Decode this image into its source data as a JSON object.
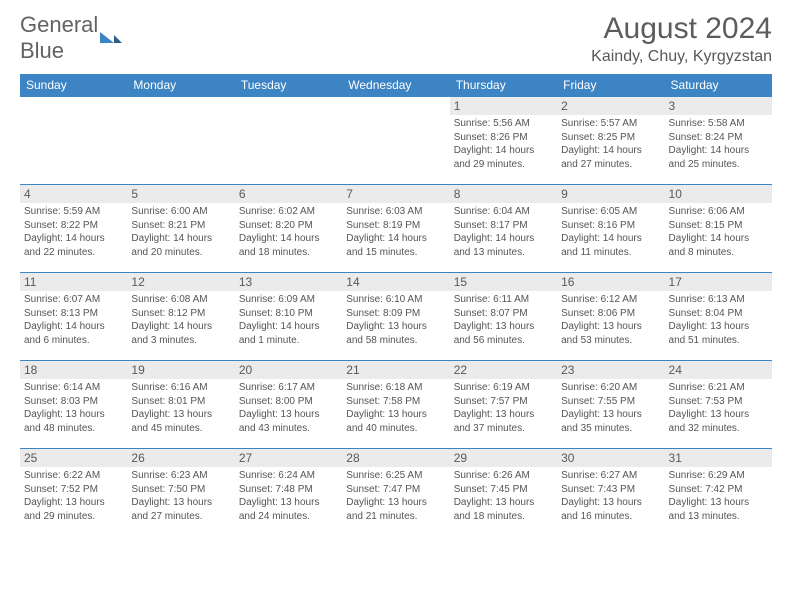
{
  "logo": {
    "general": "General",
    "blue": "Blue"
  },
  "title": "August 2024",
  "location": "Kaindy, Chuy, Kyrgyzstan",
  "colors": {
    "header_bg": "#3d84c4",
    "header_text": "#ffffff",
    "daynum_bg": "#ebebeb",
    "daynum_text": "#595959",
    "body_text": "#555555",
    "border": "#3d84c4",
    "title_text": "#5c5c5c",
    "logo_gray": "#636262",
    "logo_blue": "#3d84c4"
  },
  "weekdays": [
    "Sunday",
    "Monday",
    "Tuesday",
    "Wednesday",
    "Thursday",
    "Friday",
    "Saturday"
  ],
  "weeks": [
    [
      null,
      null,
      null,
      null,
      {
        "n": "1",
        "sr": "Sunrise: 5:56 AM",
        "ss": "Sunset: 8:26 PM",
        "dl1": "Daylight: 14 hours",
        "dl2": "and 29 minutes."
      },
      {
        "n": "2",
        "sr": "Sunrise: 5:57 AM",
        "ss": "Sunset: 8:25 PM",
        "dl1": "Daylight: 14 hours",
        "dl2": "and 27 minutes."
      },
      {
        "n": "3",
        "sr": "Sunrise: 5:58 AM",
        "ss": "Sunset: 8:24 PM",
        "dl1": "Daylight: 14 hours",
        "dl2": "and 25 minutes."
      }
    ],
    [
      {
        "n": "4",
        "sr": "Sunrise: 5:59 AM",
        "ss": "Sunset: 8:22 PM",
        "dl1": "Daylight: 14 hours",
        "dl2": "and 22 minutes."
      },
      {
        "n": "5",
        "sr": "Sunrise: 6:00 AM",
        "ss": "Sunset: 8:21 PM",
        "dl1": "Daylight: 14 hours",
        "dl2": "and 20 minutes."
      },
      {
        "n": "6",
        "sr": "Sunrise: 6:02 AM",
        "ss": "Sunset: 8:20 PM",
        "dl1": "Daylight: 14 hours",
        "dl2": "and 18 minutes."
      },
      {
        "n": "7",
        "sr": "Sunrise: 6:03 AM",
        "ss": "Sunset: 8:19 PM",
        "dl1": "Daylight: 14 hours",
        "dl2": "and 15 minutes."
      },
      {
        "n": "8",
        "sr": "Sunrise: 6:04 AM",
        "ss": "Sunset: 8:17 PM",
        "dl1": "Daylight: 14 hours",
        "dl2": "and 13 minutes."
      },
      {
        "n": "9",
        "sr": "Sunrise: 6:05 AM",
        "ss": "Sunset: 8:16 PM",
        "dl1": "Daylight: 14 hours",
        "dl2": "and 11 minutes."
      },
      {
        "n": "10",
        "sr": "Sunrise: 6:06 AM",
        "ss": "Sunset: 8:15 PM",
        "dl1": "Daylight: 14 hours",
        "dl2": "and 8 minutes."
      }
    ],
    [
      {
        "n": "11",
        "sr": "Sunrise: 6:07 AM",
        "ss": "Sunset: 8:13 PM",
        "dl1": "Daylight: 14 hours",
        "dl2": "and 6 minutes."
      },
      {
        "n": "12",
        "sr": "Sunrise: 6:08 AM",
        "ss": "Sunset: 8:12 PM",
        "dl1": "Daylight: 14 hours",
        "dl2": "and 3 minutes."
      },
      {
        "n": "13",
        "sr": "Sunrise: 6:09 AM",
        "ss": "Sunset: 8:10 PM",
        "dl1": "Daylight: 14 hours",
        "dl2": "and 1 minute."
      },
      {
        "n": "14",
        "sr": "Sunrise: 6:10 AM",
        "ss": "Sunset: 8:09 PM",
        "dl1": "Daylight: 13 hours",
        "dl2": "and 58 minutes."
      },
      {
        "n": "15",
        "sr": "Sunrise: 6:11 AM",
        "ss": "Sunset: 8:07 PM",
        "dl1": "Daylight: 13 hours",
        "dl2": "and 56 minutes."
      },
      {
        "n": "16",
        "sr": "Sunrise: 6:12 AM",
        "ss": "Sunset: 8:06 PM",
        "dl1": "Daylight: 13 hours",
        "dl2": "and 53 minutes."
      },
      {
        "n": "17",
        "sr": "Sunrise: 6:13 AM",
        "ss": "Sunset: 8:04 PM",
        "dl1": "Daylight: 13 hours",
        "dl2": "and 51 minutes."
      }
    ],
    [
      {
        "n": "18",
        "sr": "Sunrise: 6:14 AM",
        "ss": "Sunset: 8:03 PM",
        "dl1": "Daylight: 13 hours",
        "dl2": "and 48 minutes."
      },
      {
        "n": "19",
        "sr": "Sunrise: 6:16 AM",
        "ss": "Sunset: 8:01 PM",
        "dl1": "Daylight: 13 hours",
        "dl2": "and 45 minutes."
      },
      {
        "n": "20",
        "sr": "Sunrise: 6:17 AM",
        "ss": "Sunset: 8:00 PM",
        "dl1": "Daylight: 13 hours",
        "dl2": "and 43 minutes."
      },
      {
        "n": "21",
        "sr": "Sunrise: 6:18 AM",
        "ss": "Sunset: 7:58 PM",
        "dl1": "Daylight: 13 hours",
        "dl2": "and 40 minutes."
      },
      {
        "n": "22",
        "sr": "Sunrise: 6:19 AM",
        "ss": "Sunset: 7:57 PM",
        "dl1": "Daylight: 13 hours",
        "dl2": "and 37 minutes."
      },
      {
        "n": "23",
        "sr": "Sunrise: 6:20 AM",
        "ss": "Sunset: 7:55 PM",
        "dl1": "Daylight: 13 hours",
        "dl2": "and 35 minutes."
      },
      {
        "n": "24",
        "sr": "Sunrise: 6:21 AM",
        "ss": "Sunset: 7:53 PM",
        "dl1": "Daylight: 13 hours",
        "dl2": "and 32 minutes."
      }
    ],
    [
      {
        "n": "25",
        "sr": "Sunrise: 6:22 AM",
        "ss": "Sunset: 7:52 PM",
        "dl1": "Daylight: 13 hours",
        "dl2": "and 29 minutes."
      },
      {
        "n": "26",
        "sr": "Sunrise: 6:23 AM",
        "ss": "Sunset: 7:50 PM",
        "dl1": "Daylight: 13 hours",
        "dl2": "and 27 minutes."
      },
      {
        "n": "27",
        "sr": "Sunrise: 6:24 AM",
        "ss": "Sunset: 7:48 PM",
        "dl1": "Daylight: 13 hours",
        "dl2": "and 24 minutes."
      },
      {
        "n": "28",
        "sr": "Sunrise: 6:25 AM",
        "ss": "Sunset: 7:47 PM",
        "dl1": "Daylight: 13 hours",
        "dl2": "and 21 minutes."
      },
      {
        "n": "29",
        "sr": "Sunrise: 6:26 AM",
        "ss": "Sunset: 7:45 PM",
        "dl1": "Daylight: 13 hours",
        "dl2": "and 18 minutes."
      },
      {
        "n": "30",
        "sr": "Sunrise: 6:27 AM",
        "ss": "Sunset: 7:43 PM",
        "dl1": "Daylight: 13 hours",
        "dl2": "and 16 minutes."
      },
      {
        "n": "31",
        "sr": "Sunrise: 6:29 AM",
        "ss": "Sunset: 7:42 PM",
        "dl1": "Daylight: 13 hours",
        "dl2": "and 13 minutes."
      }
    ]
  ]
}
